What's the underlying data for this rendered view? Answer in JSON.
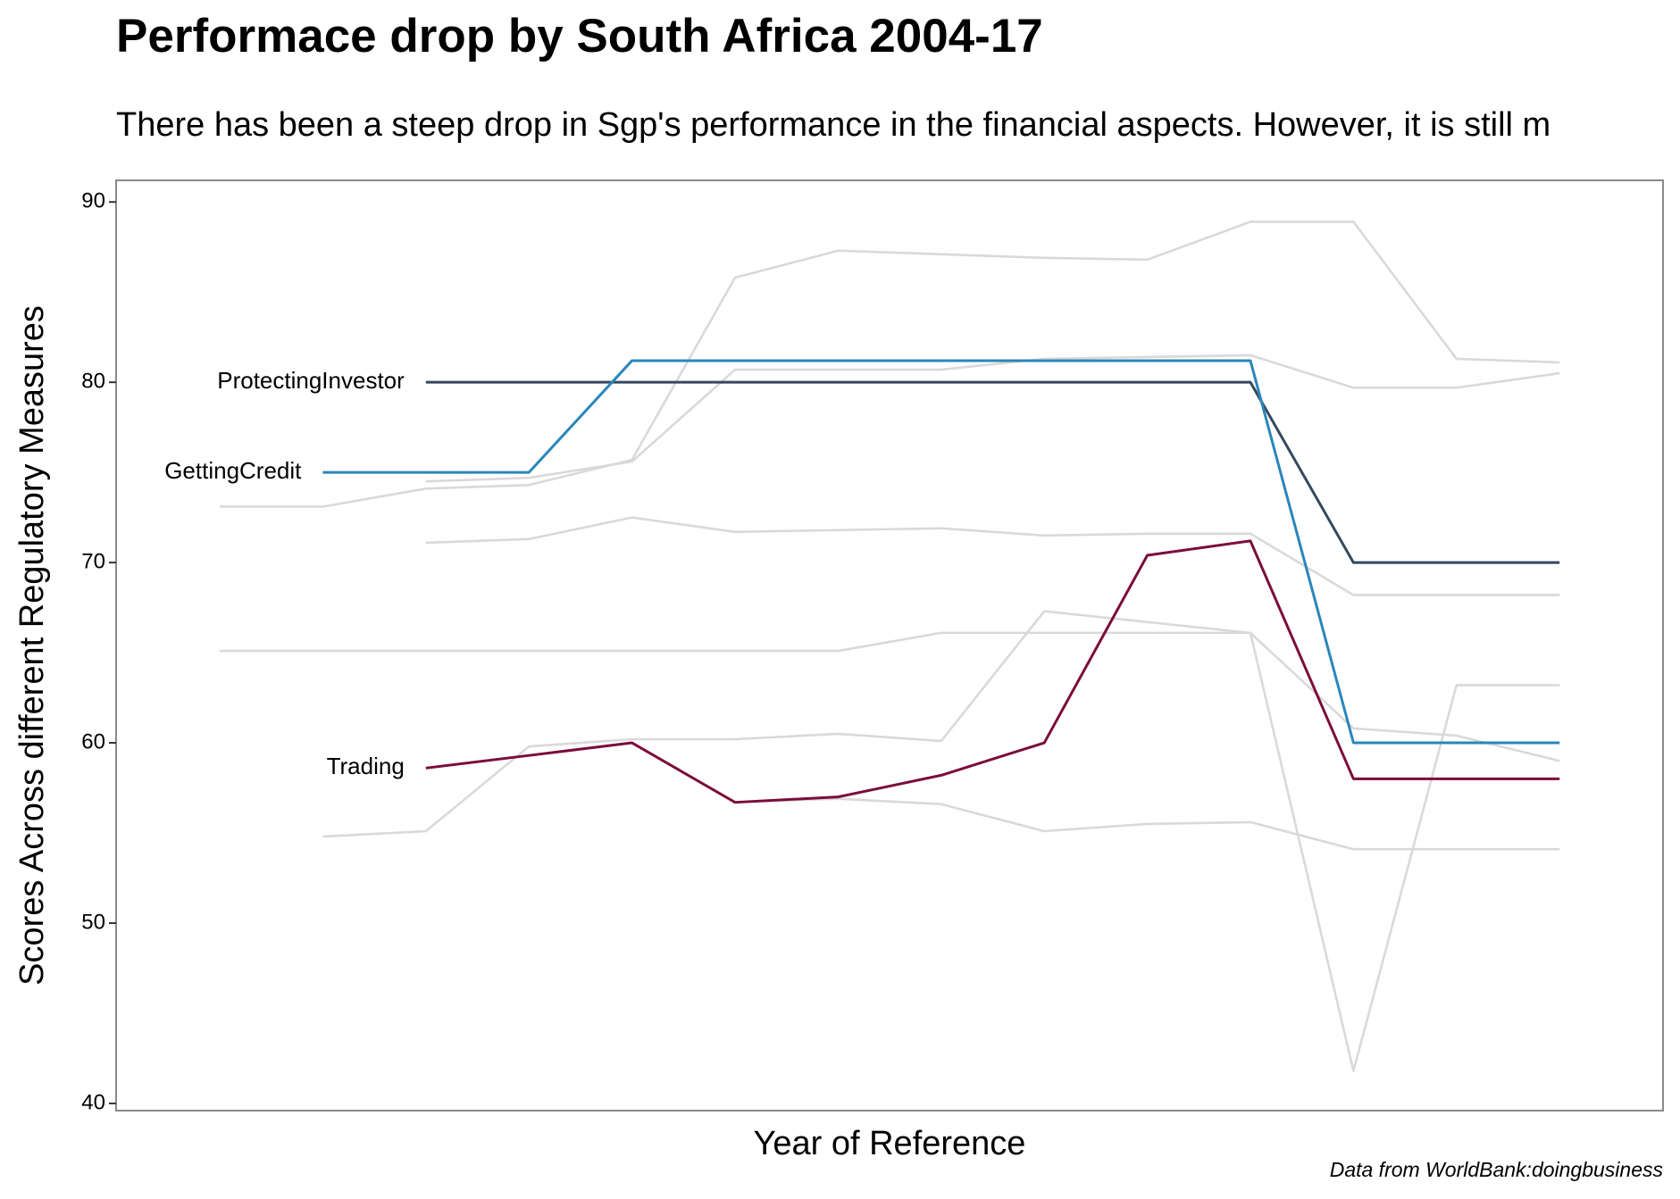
{
  "chart_data": {
    "type": "line",
    "title": "Performace drop by South Africa 2004-17",
    "subtitle": "There has been a steep drop in Sgp's performance in the financial aspects. However, it is still m",
    "x_label": "Year of Reference",
    "y_label": "Scores Across different Regulatory Measures",
    "caption": "Data from WorldBank:doingbusiness",
    "categories": [
      null,
      null,
      null,
      null,
      null,
      null,
      null,
      null,
      null,
      null,
      null,
      null,
      null,
      null
    ],
    "ylim": [
      39.6,
      91.2
    ],
    "yticks": [
      40,
      50,
      60,
      70,
      80,
      90
    ],
    "grid": false,
    "series": [
      {
        "color": "#d9d9d9",
        "values": [
          73.1,
          73.1,
          74.1,
          74.3,
          75.7,
          85.8,
          87.3,
          87.1,
          86.9,
          86.8,
          88.9,
          88.9,
          81.3,
          81.1
        ]
      },
      {
        "color": "#d9d9d9",
        "values": [
          null,
          null,
          74.5,
          74.7,
          75.6,
          80.7,
          80.7,
          80.7,
          81.3,
          81.4,
          81.5,
          79.7,
          79.7,
          80.5
        ]
      },
      {
        "color": "#d9d9d9",
        "values": [
          null,
          null,
          71.1,
          71.3,
          72.5,
          71.7,
          71.8,
          71.9,
          71.5,
          71.6,
          71.6,
          68.2,
          68.2,
          68.2
        ]
      },
      {
        "color": "#d9d9d9",
        "values": [
          65.1,
          65.1,
          65.1,
          65.1,
          65.1,
          65.1,
          65.1,
          66.1,
          66.1,
          66.1,
          66.1,
          60.8,
          60.4,
          59.0
        ]
      },
      {
        "color": "#d9d9d9",
        "values": [
          null,
          54.8,
          55.1,
          59.8,
          60.2,
          60.2,
          60.5,
          60.1,
          67.3,
          66.7,
          66.1,
          41.8,
          63.2,
          63.2
        ]
      },
      {
        "color": "#d9d9d9",
        "values": [
          null,
          null,
          null,
          null,
          null,
          56.7,
          56.9,
          56.6,
          55.1,
          55.5,
          55.6,
          54.1,
          54.1,
          54.1
        ]
      },
      {
        "name": "ProtectingInvestor",
        "color": "#34495e",
        "values": [
          null,
          null,
          80,
          80,
          80,
          80,
          80,
          80,
          80,
          80,
          80,
          70,
          70,
          70
        ]
      },
      {
        "name": "GettingCredit",
        "color": "#2a86bb",
        "values": [
          null,
          75,
          75,
          75,
          81.2,
          81.2,
          81.2,
          81.2,
          81.2,
          81.2,
          81.2,
          60,
          60,
          60
        ]
      },
      {
        "name": "Trading",
        "color": "#7b0c3a",
        "values": [
          null,
          null,
          58.6,
          59.3,
          60,
          56.7,
          57.0,
          58.2,
          60,
          70.4,
          71.2,
          58.0,
          58,
          58
        ]
      }
    ]
  }
}
